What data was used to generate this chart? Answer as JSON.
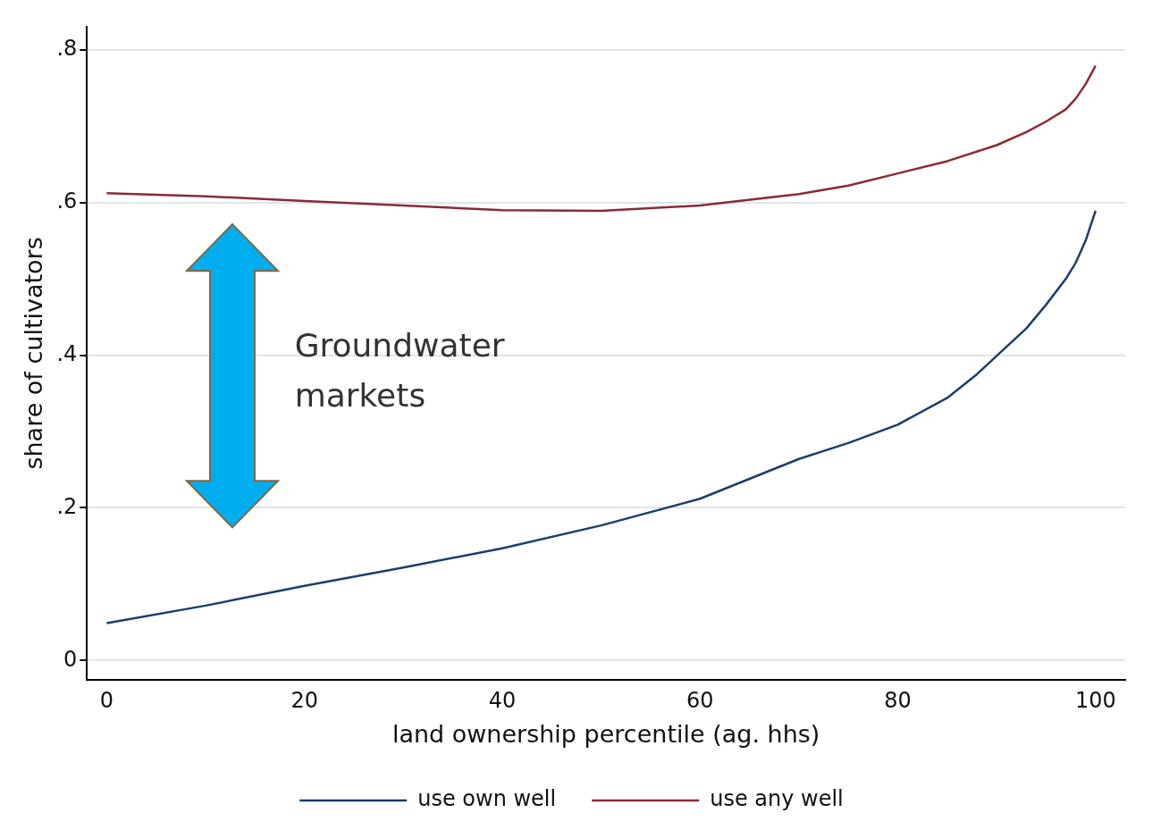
{
  "chart_data": {
    "type": "line",
    "xlabel": "land ownership percentile (ag. hhs)",
    "ylabel": "share of cultivators",
    "xlim": [
      -2,
      103
    ],
    "xticks": [
      0,
      20,
      40,
      60,
      80,
      100
    ],
    "ylim": [
      -0.025,
      0.83
    ],
    "yticks": [
      {
        "value": 0,
        "label": "0"
      },
      {
        "value": 0.2,
        "label": ".2"
      },
      {
        "value": 0.4,
        "label": ".4"
      },
      {
        "value": 0.6,
        "label": ".6"
      },
      {
        "value": 0.8,
        "label": ".8"
      }
    ],
    "grid": "y",
    "legend": "bottom",
    "marker": "none",
    "line_style": "solid",
    "annotations": [
      "Groundwater markets"
    ],
    "series": [
      {
        "name": "use own well",
        "color": "#1a3e6e",
        "x": [
          0,
          10,
          20,
          30,
          40,
          50,
          60,
          70,
          75,
          80,
          85,
          88,
          90,
          93,
          95,
          97,
          98,
          99,
          100
        ],
        "values": [
          0.049,
          0.072,
          0.098,
          0.122,
          0.147,
          0.177,
          0.212,
          0.264,
          0.285,
          0.309,
          0.344,
          0.375,
          0.399,
          0.435,
          0.466,
          0.5,
          0.521,
          0.55,
          0.589
        ]
      },
      {
        "name": "use any well",
        "color": "#8b2a35",
        "x": [
          0,
          10,
          20,
          30,
          40,
          50,
          60,
          70,
          75,
          80,
          85,
          90,
          93,
          95,
          97,
          98,
          99,
          100
        ],
        "values": [
          0.612,
          0.608,
          0.602,
          0.596,
          0.59,
          0.589,
          0.596,
          0.611,
          0.622,
          0.638,
          0.654,
          0.675,
          0.692,
          0.706,
          0.722,
          0.736,
          0.755,
          0.779
        ]
      }
    ]
  }
}
